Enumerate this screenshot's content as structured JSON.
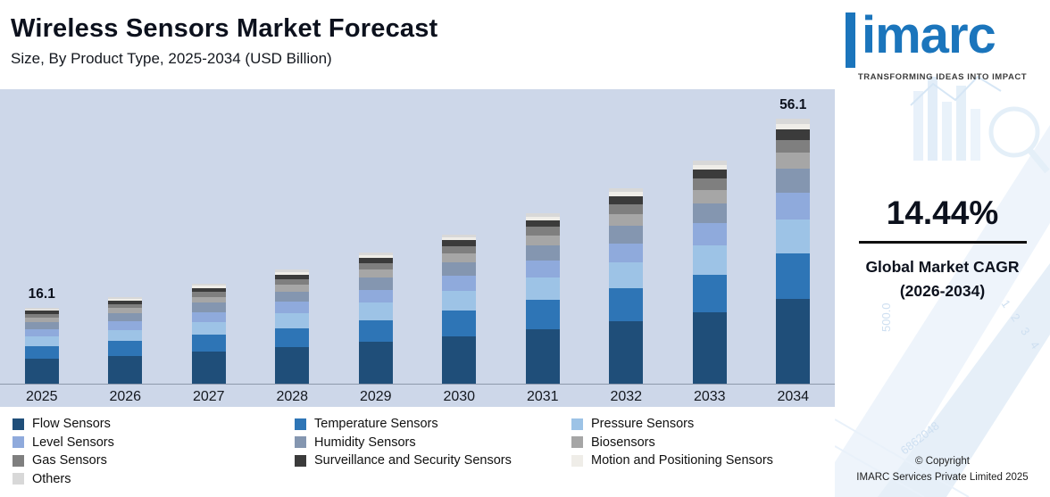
{
  "header": {
    "title": "Wireless Sensors Market Forecast",
    "subtitle": "Size, By Product Type, 2025-2034 (USD Billion)"
  },
  "chart_data": {
    "type": "bar",
    "stacked": true,
    "title": "Wireless Sensors Market Forecast",
    "subtitle": "Size, By Product Type, 2025-2034 (USD Billion)",
    "unit": "USD Billion",
    "categories": [
      "2025",
      "2026",
      "2027",
      "2028",
      "2029",
      "2030",
      "2031",
      "2032",
      "2033",
      "2034"
    ],
    "totals": [
      16.1,
      18.4,
      21.1,
      24.1,
      27.6,
      31.6,
      36.1,
      41.3,
      47.3,
      56.1
    ],
    "bar_labels": {
      "2025": "16.1",
      "2034": "56.1"
    },
    "series": [
      {
        "name": "Flow Sensors",
        "color": "#1f4e79",
        "values": [
          5.2,
          5.9,
          6.8,
          7.7,
          8.8,
          10.1,
          11.6,
          13.2,
          15.1,
          18.0
        ]
      },
      {
        "name": "Temperature Sensors",
        "color": "#2e75b6",
        "values": [
          2.7,
          3.1,
          3.6,
          4.1,
          4.7,
          5.4,
          6.1,
          7.0,
          8.0,
          9.5
        ]
      },
      {
        "name": "Pressure Sensors",
        "color": "#9dc3e6",
        "values": [
          2.1,
          2.4,
          2.7,
          3.1,
          3.6,
          4.1,
          4.7,
          5.4,
          6.1,
          7.3
        ]
      },
      {
        "name": "Level Sensors",
        "color": "#8faadc",
        "values": [
          1.6,
          1.8,
          2.1,
          2.4,
          2.8,
          3.2,
          3.6,
          4.1,
          4.7,
          5.6
        ]
      },
      {
        "name": "Humidity Sensors",
        "color": "#8496b0",
        "values": [
          1.4,
          1.7,
          1.9,
          2.2,
          2.5,
          2.8,
          3.2,
          3.7,
          4.3,
          5.0
        ]
      },
      {
        "name": "Biosensors",
        "color": "#a6a6a6",
        "values": [
          1.0,
          1.1,
          1.3,
          1.4,
          1.7,
          1.9,
          2.2,
          2.5,
          2.8,
          3.4
        ]
      },
      {
        "name": "Gas Sensors",
        "color": "#7f7f7f",
        "values": [
          0.8,
          0.9,
          1.1,
          1.2,
          1.4,
          1.6,
          1.8,
          2.1,
          2.4,
          2.8
        ]
      },
      {
        "name": "Surveillance and Security Sensors",
        "color": "#3b3b3b",
        "values": [
          0.6,
          0.7,
          0.8,
          1.0,
          1.1,
          1.3,
          1.4,
          1.7,
          1.9,
          2.2
        ]
      },
      {
        "name": "Motion and Positioning Sensors",
        "color": "#efede8",
        "values": [
          0.3,
          0.4,
          0.4,
          0.5,
          0.6,
          0.6,
          0.7,
          0.8,
          0.9,
          1.1
        ]
      },
      {
        "name": "Others",
        "color": "#d8d8d8",
        "values": [
          0.3,
          0.4,
          0.4,
          0.5,
          0.6,
          0.6,
          0.7,
          0.8,
          0.9,
          1.1
        ]
      }
    ],
    "xlabel": "",
    "ylabel": "",
    "ylim": [
      0,
      60
    ],
    "grid": false,
    "legend_position": "bottom",
    "plot_background": "#cdd7e9"
  },
  "sidebar": {
    "logo_text": "imarc",
    "tagline": "TRANSFORMING IDEAS INTO IMPACT",
    "brand_color": "#1b75bc",
    "cagr_value": "14.44%",
    "cagr_label_line1": "Global Market CAGR",
    "cagr_label_line2": "(2026-2034)",
    "copyright_line1": "© Copyright",
    "copyright_line2": "IMARC Services Private Limited 2025",
    "decor_numbers": {
      "n1": "500.0",
      "n2": "1 2 3 4",
      "n3": "6862048"
    }
  }
}
